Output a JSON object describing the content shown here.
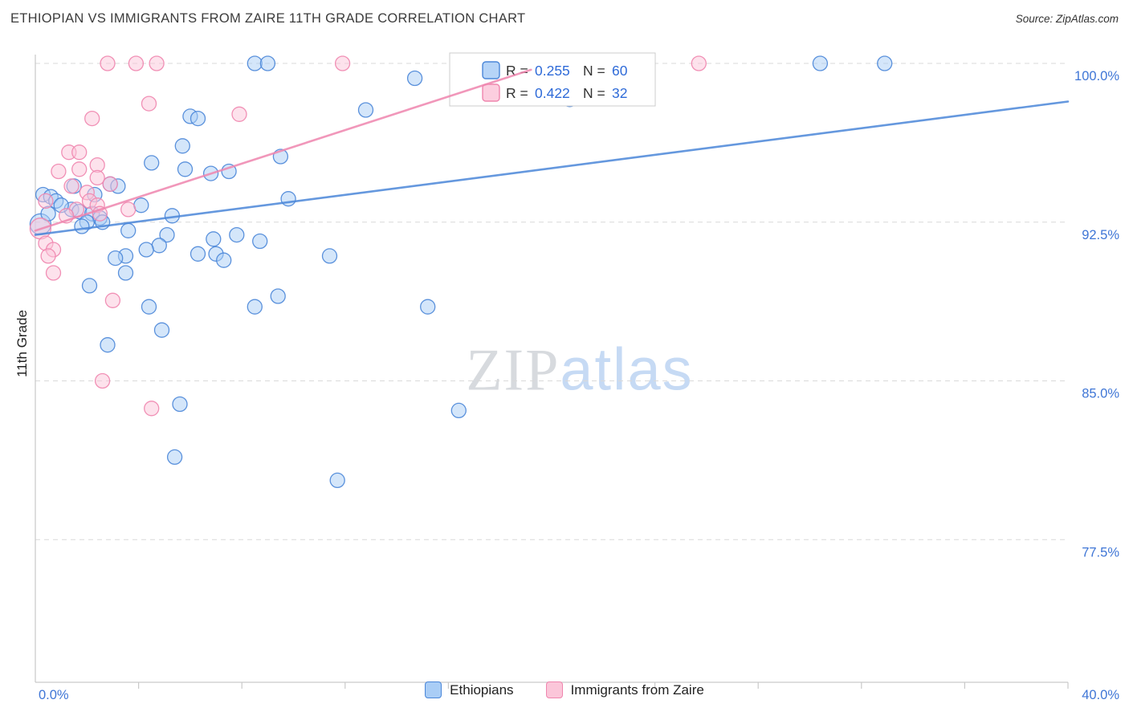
{
  "header": {
    "title": "ETHIOPIAN VS IMMIGRANTS FROM ZAIRE 11TH GRADE CORRELATION CHART",
    "source": "Source: ZipAtlas.com"
  },
  "watermark": {
    "part1": "ZIP",
    "part2": "atlas"
  },
  "axes": {
    "y_label": "11th Grade",
    "y_ticks": [
      "100.0%",
      "92.5%",
      "85.0%",
      "77.5%"
    ],
    "y_tick_values": [
      100,
      92.5,
      85,
      77.5
    ],
    "x_min_label": "0.0%",
    "x_max_label": "40.0%"
  },
  "colors": {
    "axis_label": "#3f76d6",
    "value_text": "#2f6bd8",
    "label_text": "#333333",
    "grid": "#d9d9d9",
    "axis_line": "#c9c9c9"
  },
  "legend_box": {
    "rows": [
      {
        "r_label": "R =",
        "r_value": "0.255",
        "n_label": "N =",
        "n_value": "60",
        "series": "Ethiopians"
      },
      {
        "r_label": "R =",
        "r_value": "0.422",
        "n_label": "N =",
        "n_value": "32",
        "series": "Immigrants from Zaire"
      }
    ]
  },
  "bottom_legend": {
    "items": [
      {
        "label": "Ethiopians"
      },
      {
        "label": "Immigrants from Zaire"
      }
    ]
  },
  "chart_data": {
    "type": "scatter",
    "title": "Ethiopian vs Immigrants from Zaire 11th Grade Correlation Chart",
    "xlabel_range": "0.0% to 40.0%",
    "ylabel": "11th Grade",
    "xlim": [
      0,
      40
    ],
    "ylim": [
      70.7,
      100
    ],
    "grid": "dashed-horizontal",
    "legend_position": "bottom-center",
    "series": [
      {
        "name": "Ethiopians",
        "R": 0.255,
        "N": 60,
        "color": "#4a86d8",
        "fill": "#a9cdf6",
        "trend": {
          "x1": 0,
          "y1": 91.9,
          "x2": 40,
          "y2": 98.2
        },
        "points": [
          [
            8.5,
            100
          ],
          [
            9.0,
            100
          ],
          [
            14.7,
            99.3
          ],
          [
            20.7,
            98.3
          ],
          [
            30.4,
            100
          ],
          [
            32.9,
            100
          ],
          [
            12.8,
            97.8
          ],
          [
            6.0,
            97.5
          ],
          [
            6.3,
            97.4
          ],
          [
            5.7,
            96.1
          ],
          [
            9.5,
            95.6
          ],
          [
            4.5,
            95.3
          ],
          [
            5.8,
            95.0
          ],
          [
            6.8,
            94.8
          ],
          [
            7.5,
            94.9
          ],
          [
            2.9,
            94.3
          ],
          [
            3.2,
            94.2
          ],
          [
            1.5,
            94.2
          ],
          [
            9.8,
            93.6
          ],
          [
            0.3,
            93.8
          ],
          [
            0.6,
            93.7
          ],
          [
            0.8,
            93.5
          ],
          [
            4.1,
            93.3
          ],
          [
            1.4,
            93.1
          ],
          [
            1.7,
            93.0
          ],
          [
            2.2,
            92.9
          ],
          [
            5.3,
            92.8
          ],
          [
            2.5,
            92.7
          ],
          [
            2.0,
            92.5
          ],
          [
            2.6,
            92.5
          ],
          [
            0.2,
            92.4,
            13
          ],
          [
            3.6,
            92.1
          ],
          [
            5.1,
            91.9
          ],
          [
            6.9,
            91.7
          ],
          [
            7.8,
            91.9
          ],
          [
            8.7,
            91.6
          ],
          [
            3.5,
            90.9
          ],
          [
            7.0,
            91.0
          ],
          [
            6.3,
            91.0
          ],
          [
            4.8,
            91.4
          ],
          [
            3.1,
            90.8
          ],
          [
            11.4,
            90.9
          ],
          [
            7.3,
            90.7
          ],
          [
            4.3,
            91.2
          ],
          [
            3.5,
            90.1
          ],
          [
            2.1,
            89.5
          ],
          [
            9.4,
            89.0
          ],
          [
            8.5,
            88.5
          ],
          [
            15.2,
            88.5
          ],
          [
            4.4,
            88.5
          ],
          [
            4.9,
            87.4
          ],
          [
            2.8,
            86.7
          ],
          [
            5.6,
            83.9
          ],
          [
            16.4,
            83.6
          ],
          [
            5.4,
            81.4
          ],
          [
            11.7,
            80.3
          ],
          [
            0.5,
            92.9
          ],
          [
            1.0,
            93.3
          ],
          [
            1.8,
            92.3
          ],
          [
            2.3,
            93.8
          ]
        ]
      },
      {
        "name": "Immigrants from Zaire",
        "R": 0.422,
        "N": 32,
        "color": "#ef85ae",
        "fill": "#fbc6d9",
        "trend": {
          "x1": 0,
          "y1": 92.1,
          "x2": 19.2,
          "y2": 99.7
        },
        "points": [
          [
            2.8,
            100
          ],
          [
            3.9,
            100
          ],
          [
            4.7,
            100
          ],
          [
            11.9,
            100
          ],
          [
            25.7,
            100
          ],
          [
            4.4,
            98.1
          ],
          [
            2.2,
            97.4
          ],
          [
            7.9,
            97.6
          ],
          [
            1.3,
            95.8
          ],
          [
            1.7,
            95.8
          ],
          [
            1.7,
            95.0
          ],
          [
            2.4,
            95.2
          ],
          [
            0.9,
            94.9
          ],
          [
            1.4,
            94.2
          ],
          [
            2.4,
            94.6
          ],
          [
            2.0,
            93.9
          ],
          [
            0.4,
            93.5
          ],
          [
            2.1,
            93.5
          ],
          [
            2.4,
            93.3
          ],
          [
            1.6,
            93.1
          ],
          [
            2.9,
            94.3
          ],
          [
            1.2,
            92.8
          ],
          [
            2.5,
            92.9
          ],
          [
            0.2,
            92.2,
            13
          ],
          [
            3.6,
            93.1
          ],
          [
            0.4,
            91.5
          ],
          [
            0.7,
            91.2
          ],
          [
            0.5,
            90.9
          ],
          [
            0.7,
            90.1
          ],
          [
            3.0,
            88.8
          ],
          [
            2.6,
            85.0
          ],
          [
            4.5,
            83.7
          ]
        ]
      }
    ]
  }
}
